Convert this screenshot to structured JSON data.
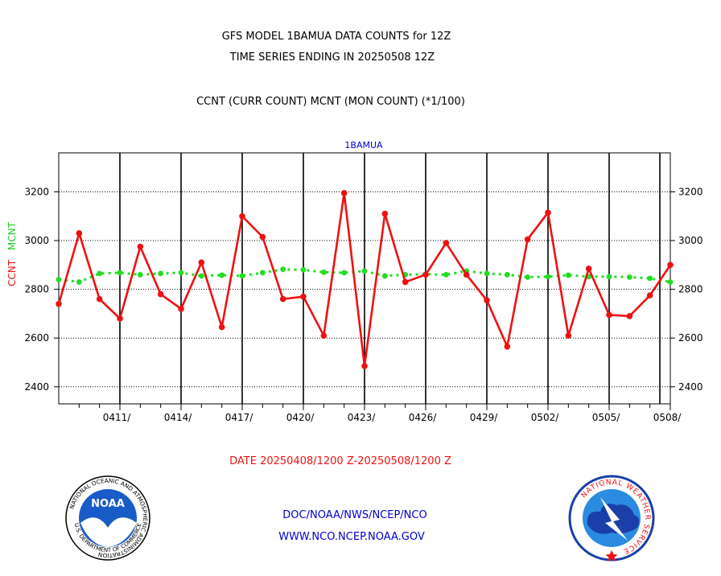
{
  "header": {
    "title_line1": "GFS MODEL 1BAMUA DATA COUNTS for 12Z",
    "title_line2": "TIME SERIES ENDING IN 20250508 12Z",
    "subtitle": "CCNT (CURR COUNT) MCNT (MON COUNT) (*1/100)"
  },
  "footer": {
    "date_range": "DATE 20250408/1200 Z-20250508/1200 Z",
    "org": "DOC/NOAA/NWS/NCEP/NCO",
    "url": "WWW.NCO.NCEP.NOAA.GOV"
  },
  "logos": {
    "noaa_text": "NOAA",
    "noaa_ring": "NATIONAL OCEANIC AND ATMOSPHERIC ADMINISTRATION",
    "noaa_ring_bottom": "U.S. DEPARTMENT OF COMMERCE",
    "nws_ring": "NATIONAL WEATHER SERVICE"
  },
  "colors": {
    "ccnt": "#ee1111",
    "mcnt": "#22dd22",
    "title": "#000000",
    "plot_label": "#0000cc",
    "date_label": "#ee1111",
    "footer_link": "#0000cc"
  },
  "chart_data": {
    "type": "line",
    "title": "1BAMUA",
    "ylabel_parts": [
      "CCNT",
      "MCNT"
    ],
    "ylim": [
      2330,
      3360
    ],
    "yticks": [
      2400,
      2600,
      2800,
      3000,
      3200
    ],
    "x_day_range": [
      0,
      30
    ],
    "xtick_days": [
      3,
      6,
      9,
      12,
      15,
      18,
      21,
      24,
      27,
      30
    ],
    "xtick_labels": [
      "0411/",
      "0414/",
      "0417/",
      "0420/",
      "0423/",
      "0426/",
      "0429/",
      "0502/",
      "0505/",
      "0508/"
    ],
    "grid": true,
    "series": [
      {
        "name": "CCNT",
        "values": [
          2740,
          3030,
          2760,
          2680,
          2975,
          2780,
          2720,
          2910,
          2645,
          3100,
          3015,
          2760,
          2770,
          2610,
          3195,
          2485,
          3110,
          2830,
          2860,
          2990,
          2860,
          2755,
          2565,
          3005,
          3115,
          2610,
          2885,
          2695,
          2690,
          2775,
          2900
        ]
      },
      {
        "name": "MCNT",
        "values": [
          2840,
          2830,
          2865,
          2868,
          2860,
          2865,
          2868,
          2855,
          2858,
          2855,
          2868,
          2882,
          2880,
          2870,
          2868,
          2875,
          2855,
          2860,
          2862,
          2860,
          2875,
          2865,
          2860,
          2850,
          2852,
          2858,
          2852,
          2852,
          2850,
          2845,
          2830
        ]
      }
    ]
  }
}
